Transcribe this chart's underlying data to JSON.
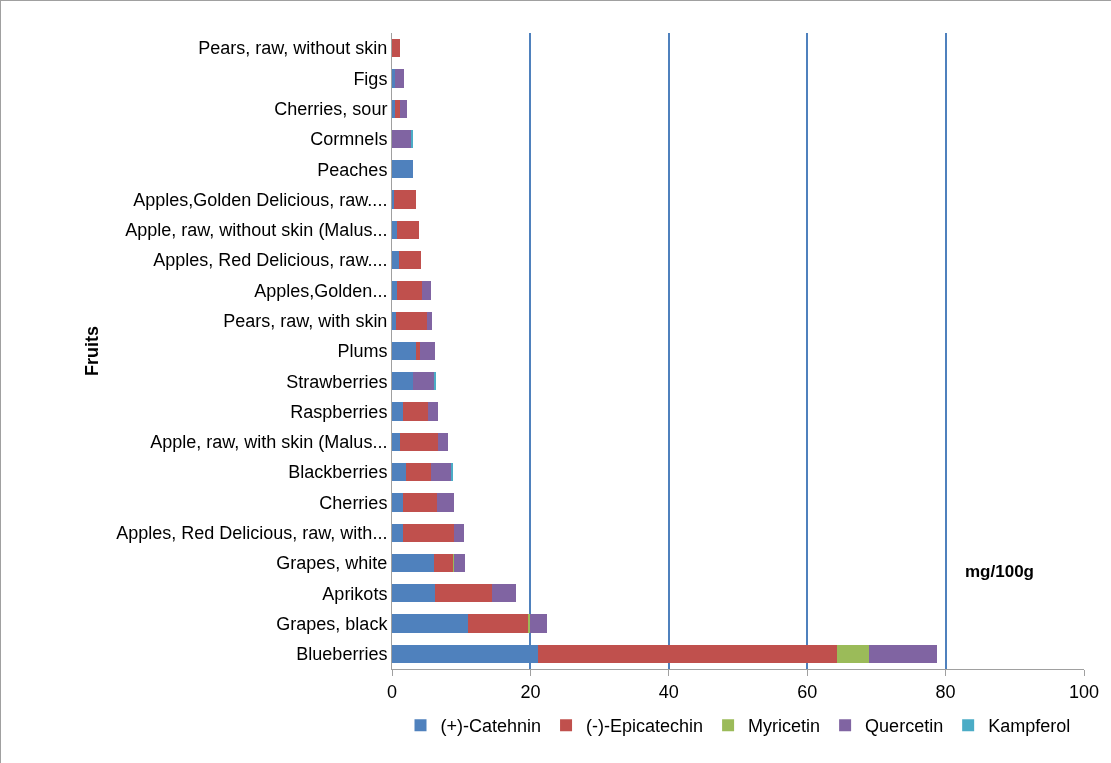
{
  "chart_data": {
    "type": "bar",
    "orientation": "horizontal",
    "stacked": true,
    "ylabel": "Fruits",
    "annotations": [
      "mg/100g"
    ],
    "categories": [
      "Pears, raw, without skin",
      "Figs",
      "Cherries, sour",
      "Cormnels",
      "Peaches",
      "Apples,Golden Delicious, raw....",
      "Apple, raw, without skin (Malus...",
      "Apples, Red Delicious, raw....",
      "Apples,Golden...",
      "Pears, raw, with skin",
      "Plums",
      "Strawberries",
      "Raspberries",
      "Apple, raw, with skin (Malus...",
      "Blackberries",
      "Cherries",
      "Apples, Red Delicious, raw, with...",
      "Grapes, white",
      "Aprikots",
      "Grapes, black",
      "Blueberries"
    ],
    "series": [
      {
        "name": "(+)-Catehnin",
        "color": "#4f81bd",
        "values": [
          null,
          0.5,
          0.4,
          null,
          3.1,
          0.3,
          0.7,
          1.0,
          0.7,
          0.6,
          3.4,
          3.0,
          1.6,
          1.1,
          2.0,
          1.6,
          1.6,
          6.0,
          6.2,
          11.0,
          21.1
        ]
      },
      {
        "name": "(-)-Epicatechin",
        "color": "#c0504d",
        "values": [
          1.1,
          null,
          0.8,
          null,
          null,
          3.2,
          3.2,
          3.2,
          3.7,
          4.5,
          0.6,
          null,
          3.6,
          5.5,
          3.7,
          4.9,
          7.3,
          2.8,
          8.3,
          8.7,
          43.2
        ]
      },
      {
        "name": "Myricetin",
        "color": "#9bbb59",
        "values": [
          null,
          null,
          null,
          null,
          null,
          null,
          null,
          null,
          null,
          null,
          null,
          null,
          null,
          null,
          null,
          null,
          null,
          0.2,
          null,
          0.3,
          4.6
        ]
      },
      {
        "name": "Quercetin",
        "color": "#8064a2",
        "values": [
          null,
          1.2,
          0.9,
          2.7,
          null,
          null,
          null,
          null,
          1.3,
          0.7,
          2.2,
          3.1,
          1.5,
          1.5,
          2.8,
          2.4,
          1.5,
          1.6,
          3.4,
          2.4,
          9.8
        ]
      },
      {
        "name": "Kampferol",
        "color": "#4bacc6",
        "values": [
          null,
          null,
          null,
          0.3,
          null,
          null,
          null,
          null,
          null,
          null,
          null,
          0.3,
          null,
          null,
          0.3,
          null,
          null,
          null,
          null,
          null,
          null
        ]
      }
    ],
    "xlim": [
      0,
      100
    ],
    "xticks": [
      0,
      20,
      40,
      60,
      80,
      100
    ],
    "grid": "x",
    "legend": "bottom"
  }
}
